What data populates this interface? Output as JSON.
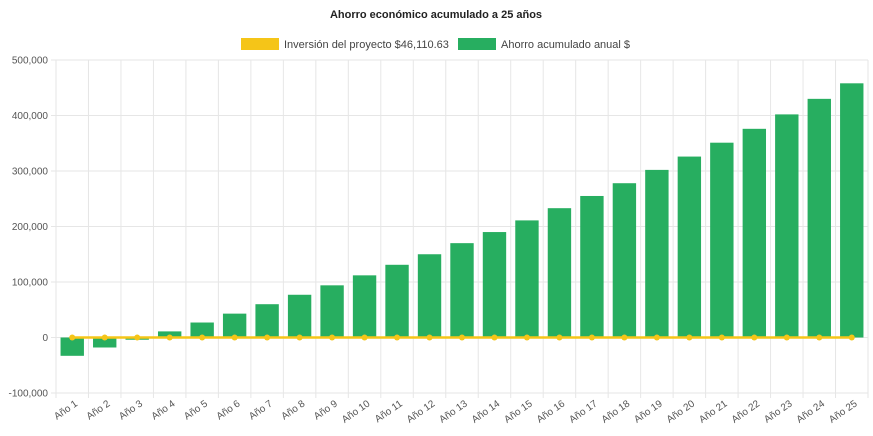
{
  "chart_data": {
    "type": "bar",
    "title": "Ahorro económico acumulado a 25 años",
    "categories": [
      "Año 1",
      "Año 2",
      "Año 3",
      "Año 4",
      "Año 5",
      "Año 6",
      "Año 7",
      "Año 8",
      "Año 9",
      "Año 10",
      "Año 11",
      "Año 12",
      "Año 13",
      "Año 14",
      "Año 15",
      "Año 16",
      "Año 17",
      "Año 18",
      "Año 19",
      "Año 20",
      "Año 21",
      "Año 22",
      "Año 23",
      "Año 24",
      "Año 25"
    ],
    "series": [
      {
        "name": "Inversión del proyecto $46,110.63",
        "type": "line",
        "color": "#f5c518",
        "values": [
          0,
          0,
          0,
          0,
          0,
          0,
          0,
          0,
          0,
          0,
          0,
          0,
          0,
          0,
          0,
          0,
          0,
          0,
          0,
          0,
          0,
          0,
          0,
          0,
          0
        ]
      },
      {
        "name": "Ahorro acumulado anual $",
        "type": "bar",
        "color": "#27ae60",
        "values": [
          -33000,
          -18000,
          -4000,
          11000,
          27000,
          43000,
          60000,
          77000,
          94000,
          112000,
          131000,
          150000,
          170000,
          190000,
          211000,
          233000,
          255000,
          278000,
          302000,
          326000,
          351000,
          376000,
          402000,
          430000,
          458000
        ]
      }
    ],
    "y_ticks": [
      "500,000",
      "400,000",
      "300,000",
      "200,000",
      "100,000",
      "0",
      "-100,000"
    ],
    "ylim": [
      -100000,
      500000
    ],
    "grid": true,
    "legend_position": "top-center"
  }
}
